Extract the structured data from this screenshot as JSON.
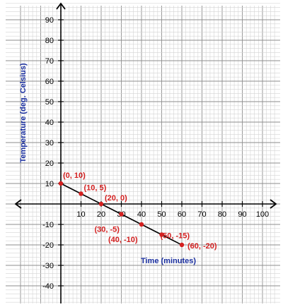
{
  "chart_data": {
    "type": "line",
    "xlabel": "Time (minutes)",
    "ylabel": "Temperature (deg. Celsius)",
    "xlim": [
      -20,
      106
    ],
    "ylim": [
      -48,
      98
    ],
    "x_ticks": [
      10,
      20,
      30,
      40,
      50,
      60,
      70,
      80,
      90,
      100
    ],
    "y_ticks": [
      90,
      80,
      70,
      60,
      50,
      40,
      30,
      20,
      10,
      -10,
      -20,
      -30,
      -40
    ],
    "grid": true,
    "colors": {
      "grid_minor": "#d4d4d4",
      "grid_major": "#8e8e8e",
      "axis": "#000000",
      "line": "#000000",
      "points": "#d42020",
      "point_labels": "#d42020",
      "axis_titles": "#1a2fa0"
    },
    "series": [
      {
        "x": [
          0,
          10,
          20,
          30,
          40,
          50,
          60
        ],
        "y": [
          10,
          5,
          0,
          -5,
          -10,
          -15,
          -20
        ]
      }
    ],
    "point_labels": [
      "(0, 10)",
      "(10, 5)",
      "(20, 0)",
      "(30, -5)",
      "(40, -10)",
      "(50, -15)",
      "(60, -20)"
    ]
  }
}
